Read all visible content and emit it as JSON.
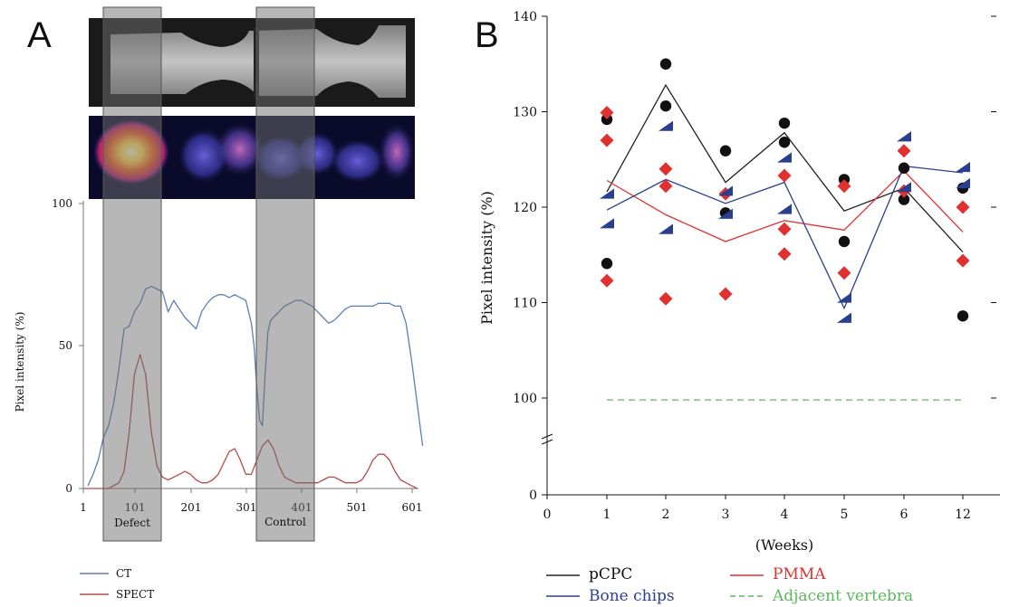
{
  "panel_a": {
    "letter": "A",
    "ylabel": "Pixel intensity (%)",
    "yticks": [
      "0",
      "50",
      "100"
    ],
    "xticks": [
      "1",
      "101",
      "201",
      "301",
      "401",
      "501",
      "601"
    ],
    "region_labels": [
      "Defect",
      "Control"
    ],
    "legend": [
      {
        "label": "CT",
        "color": "#5b7fb5"
      },
      {
        "label": "SPECT",
        "color": "#b84a4a"
      }
    ]
  },
  "panel_b": {
    "letter": "B",
    "ylabel": "Pixel intensity (%)",
    "xlabel": "(Weeks)",
    "yticks": [
      "0",
      "100",
      "110",
      "120",
      "130",
      "140"
    ],
    "xticks": [
      "0",
      "1",
      "2",
      "3",
      "4",
      "5",
      "6",
      "12"
    ],
    "legend": [
      {
        "label": "pCPC",
        "color": "#222222",
        "dash": false
      },
      {
        "label": "PMMA",
        "color": "#e03030",
        "dash": false
      },
      {
        "label": "Bone chips",
        "color": "#2b3f8f",
        "dash": false
      },
      {
        "label": "Adjacent vertebra",
        "color": "#5cb85c",
        "dash": true
      }
    ]
  },
  "chart_data": [
    {
      "type": "line",
      "panel": "A",
      "xlabel": "",
      "ylabel": "Pixel intensity (%)",
      "xlim": [
        1,
        620
      ],
      "ylim": [
        0,
        100
      ],
      "x_ticks": [
        1,
        101,
        201,
        301,
        401,
        501,
        601
      ],
      "shaded_regions": [
        {
          "label": "Defect",
          "x_range": [
            40,
            150
          ]
        },
        {
          "label": "Control",
          "x_range": [
            315,
            425
          ]
        }
      ],
      "series": [
        {
          "name": "CT",
          "color": "#5b7fb5",
          "x": [
            10,
            20,
            30,
            40,
            50,
            60,
            70,
            80,
            90,
            100,
            110,
            120,
            130,
            140,
            150,
            160,
            170,
            180,
            190,
            200,
            210,
            220,
            230,
            240,
            250,
            260,
            270,
            280,
            290,
            300,
            305,
            310,
            315,
            320,
            325,
            330,
            335,
            340,
            345,
            350,
            360,
            370,
            380,
            390,
            400,
            410,
            420,
            430,
            440,
            450,
            460,
            470,
            480,
            490,
            500,
            510,
            520,
            530,
            540,
            550,
            560,
            570,
            580,
            590,
            600,
            610,
            620
          ],
          "y": [
            1,
            5,
            10,
            18,
            22,
            30,
            42,
            56,
            57,
            62,
            65,
            70,
            71,
            70,
            69,
            62,
            66,
            63,
            60,
            58,
            56,
            62,
            65,
            67,
            68,
            68,
            67,
            68,
            67,
            66,
            62,
            58,
            50,
            35,
            24,
            22,
            40,
            55,
            59,
            60,
            62,
            64,
            65,
            66,
            66,
            65,
            64,
            62,
            60,
            58,
            59,
            61,
            63,
            64,
            64,
            64,
            64,
            64,
            65,
            65,
            65,
            64,
            64,
            58,
            45,
            30,
            15
          ]
        },
        {
          "name": "SPECT",
          "color": "#b84a4a",
          "x": [
            1,
            30,
            50,
            70,
            80,
            90,
            100,
            110,
            120,
            130,
            140,
            150,
            160,
            170,
            180,
            190,
            200,
            210,
            220,
            230,
            240,
            250,
            260,
            270,
            280,
            290,
            300,
            310,
            320,
            330,
            340,
            350,
            360,
            370,
            380,
            390,
            400,
            410,
            420,
            430,
            440,
            450,
            460,
            470,
            480,
            490,
            500,
            510,
            520,
            530,
            540,
            550,
            560,
            570,
            580,
            590,
            600,
            610
          ],
          "y": [
            0,
            0,
            0,
            2,
            6,
            20,
            40,
            47,
            40,
            20,
            8,
            4,
            3,
            4,
            5,
            6,
            5,
            3,
            2,
            2,
            3,
            5,
            9,
            13,
            14,
            10,
            5,
            5,
            10,
            15,
            17,
            14,
            8,
            4,
            3,
            2,
            2,
            2,
            2,
            2,
            3,
            4,
            4,
            3,
            2,
            2,
            2,
            3,
            6,
            10,
            12,
            12,
            10,
            6,
            3,
            2,
            1,
            0
          ]
        }
      ]
    },
    {
      "type": "scatter",
      "panel": "B",
      "xlabel": "(Weeks)",
      "ylabel": "Pixel intensity (%)",
      "categories": [
        "0",
        "1",
        "2",
        "3",
        "4",
        "5",
        "6",
        "12"
      ],
      "y_ticks": [
        0,
        100,
        110,
        120,
        130,
        140
      ],
      "ylim_display": [
        100,
        140
      ],
      "axis_break": true,
      "series": [
        {
          "name": "pCPC",
          "color": "#222222",
          "marker": "circle",
          "points": [
            [
              1,
              129.2
            ],
            [
              1,
              114.1
            ],
            [
              2,
              135.0
            ],
            [
              2,
              130.6
            ],
            [
              3,
              125.9
            ],
            [
              3,
              119.4
            ],
            [
              4,
              128.8
            ],
            [
              4,
              126.8
            ],
            [
              5,
              122.9
            ],
            [
              5,
              116.4
            ],
            [
              6,
              124.1
            ],
            [
              6,
              120.8
            ],
            [
              12,
              122.0
            ],
            [
              12,
              108.6
            ]
          ],
          "mean_line": [
            [
              1,
              121.6
            ],
            [
              2,
              132.8
            ],
            [
              3,
              122.6
            ],
            [
              4,
              127.8
            ],
            [
              5,
              119.6
            ],
            [
              6,
              122.0
            ],
            [
              12,
              115.3
            ]
          ]
        },
        {
          "name": "PMMA",
          "color": "#e03030",
          "marker": "diamond",
          "points": [
            [
              1,
              129.9
            ],
            [
              1,
              127.0
            ],
            [
              1,
              112.3
            ],
            [
              2,
              124.0
            ],
            [
              2,
              122.2
            ],
            [
              2,
              110.4
            ],
            [
              3,
              121.4
            ],
            [
              3,
              110.9
            ],
            [
              4,
              123.3
            ],
            [
              4,
              117.7
            ],
            [
              4,
              115.1
            ],
            [
              5,
              122.2
            ],
            [
              5,
              113.1
            ],
            [
              6,
              125.9
            ],
            [
              6,
              121.7
            ],
            [
              12,
              120.0
            ],
            [
              12,
              114.4
            ]
          ],
          "mean_line": [
            [
              1,
              122.8
            ],
            [
              2,
              119.2
            ],
            [
              3,
              116.4
            ],
            [
              4,
              118.6
            ],
            [
              5,
              117.6
            ],
            [
              6,
              123.8
            ],
            [
              12,
              117.4
            ]
          ]
        },
        {
          "name": "Bone chips",
          "color": "#2b3f8f",
          "marker": "triangle",
          "points": [
            [
              1,
              121.3
            ],
            [
              1,
              118.2
            ],
            [
              2,
              128.4
            ],
            [
              2,
              117.6
            ],
            [
              3,
              121.6
            ],
            [
              3,
              119.2
            ],
            [
              4,
              125.1
            ],
            [
              4,
              119.7
            ],
            [
              5,
              110.4
            ],
            [
              5,
              108.3
            ],
            [
              6,
              127.3
            ],
            [
              6,
              122.0
            ],
            [
              12,
              124.1
            ],
            [
              12,
              122.4
            ]
          ],
          "mean_line": [
            [
              1,
              119.7
            ],
            [
              2,
              122.9
            ],
            [
              3,
              120.4
            ],
            [
              4,
              122.6
            ],
            [
              5,
              109.4
            ],
            [
              6,
              124.3
            ],
            [
              12,
              123.6
            ]
          ]
        },
        {
          "name": "Adjacent vertebra",
          "color": "#5cb85c",
          "style": "dashed",
          "mean_line": [
            [
              1,
              99.8
            ],
            [
              12,
              99.8
            ]
          ]
        }
      ]
    }
  ]
}
